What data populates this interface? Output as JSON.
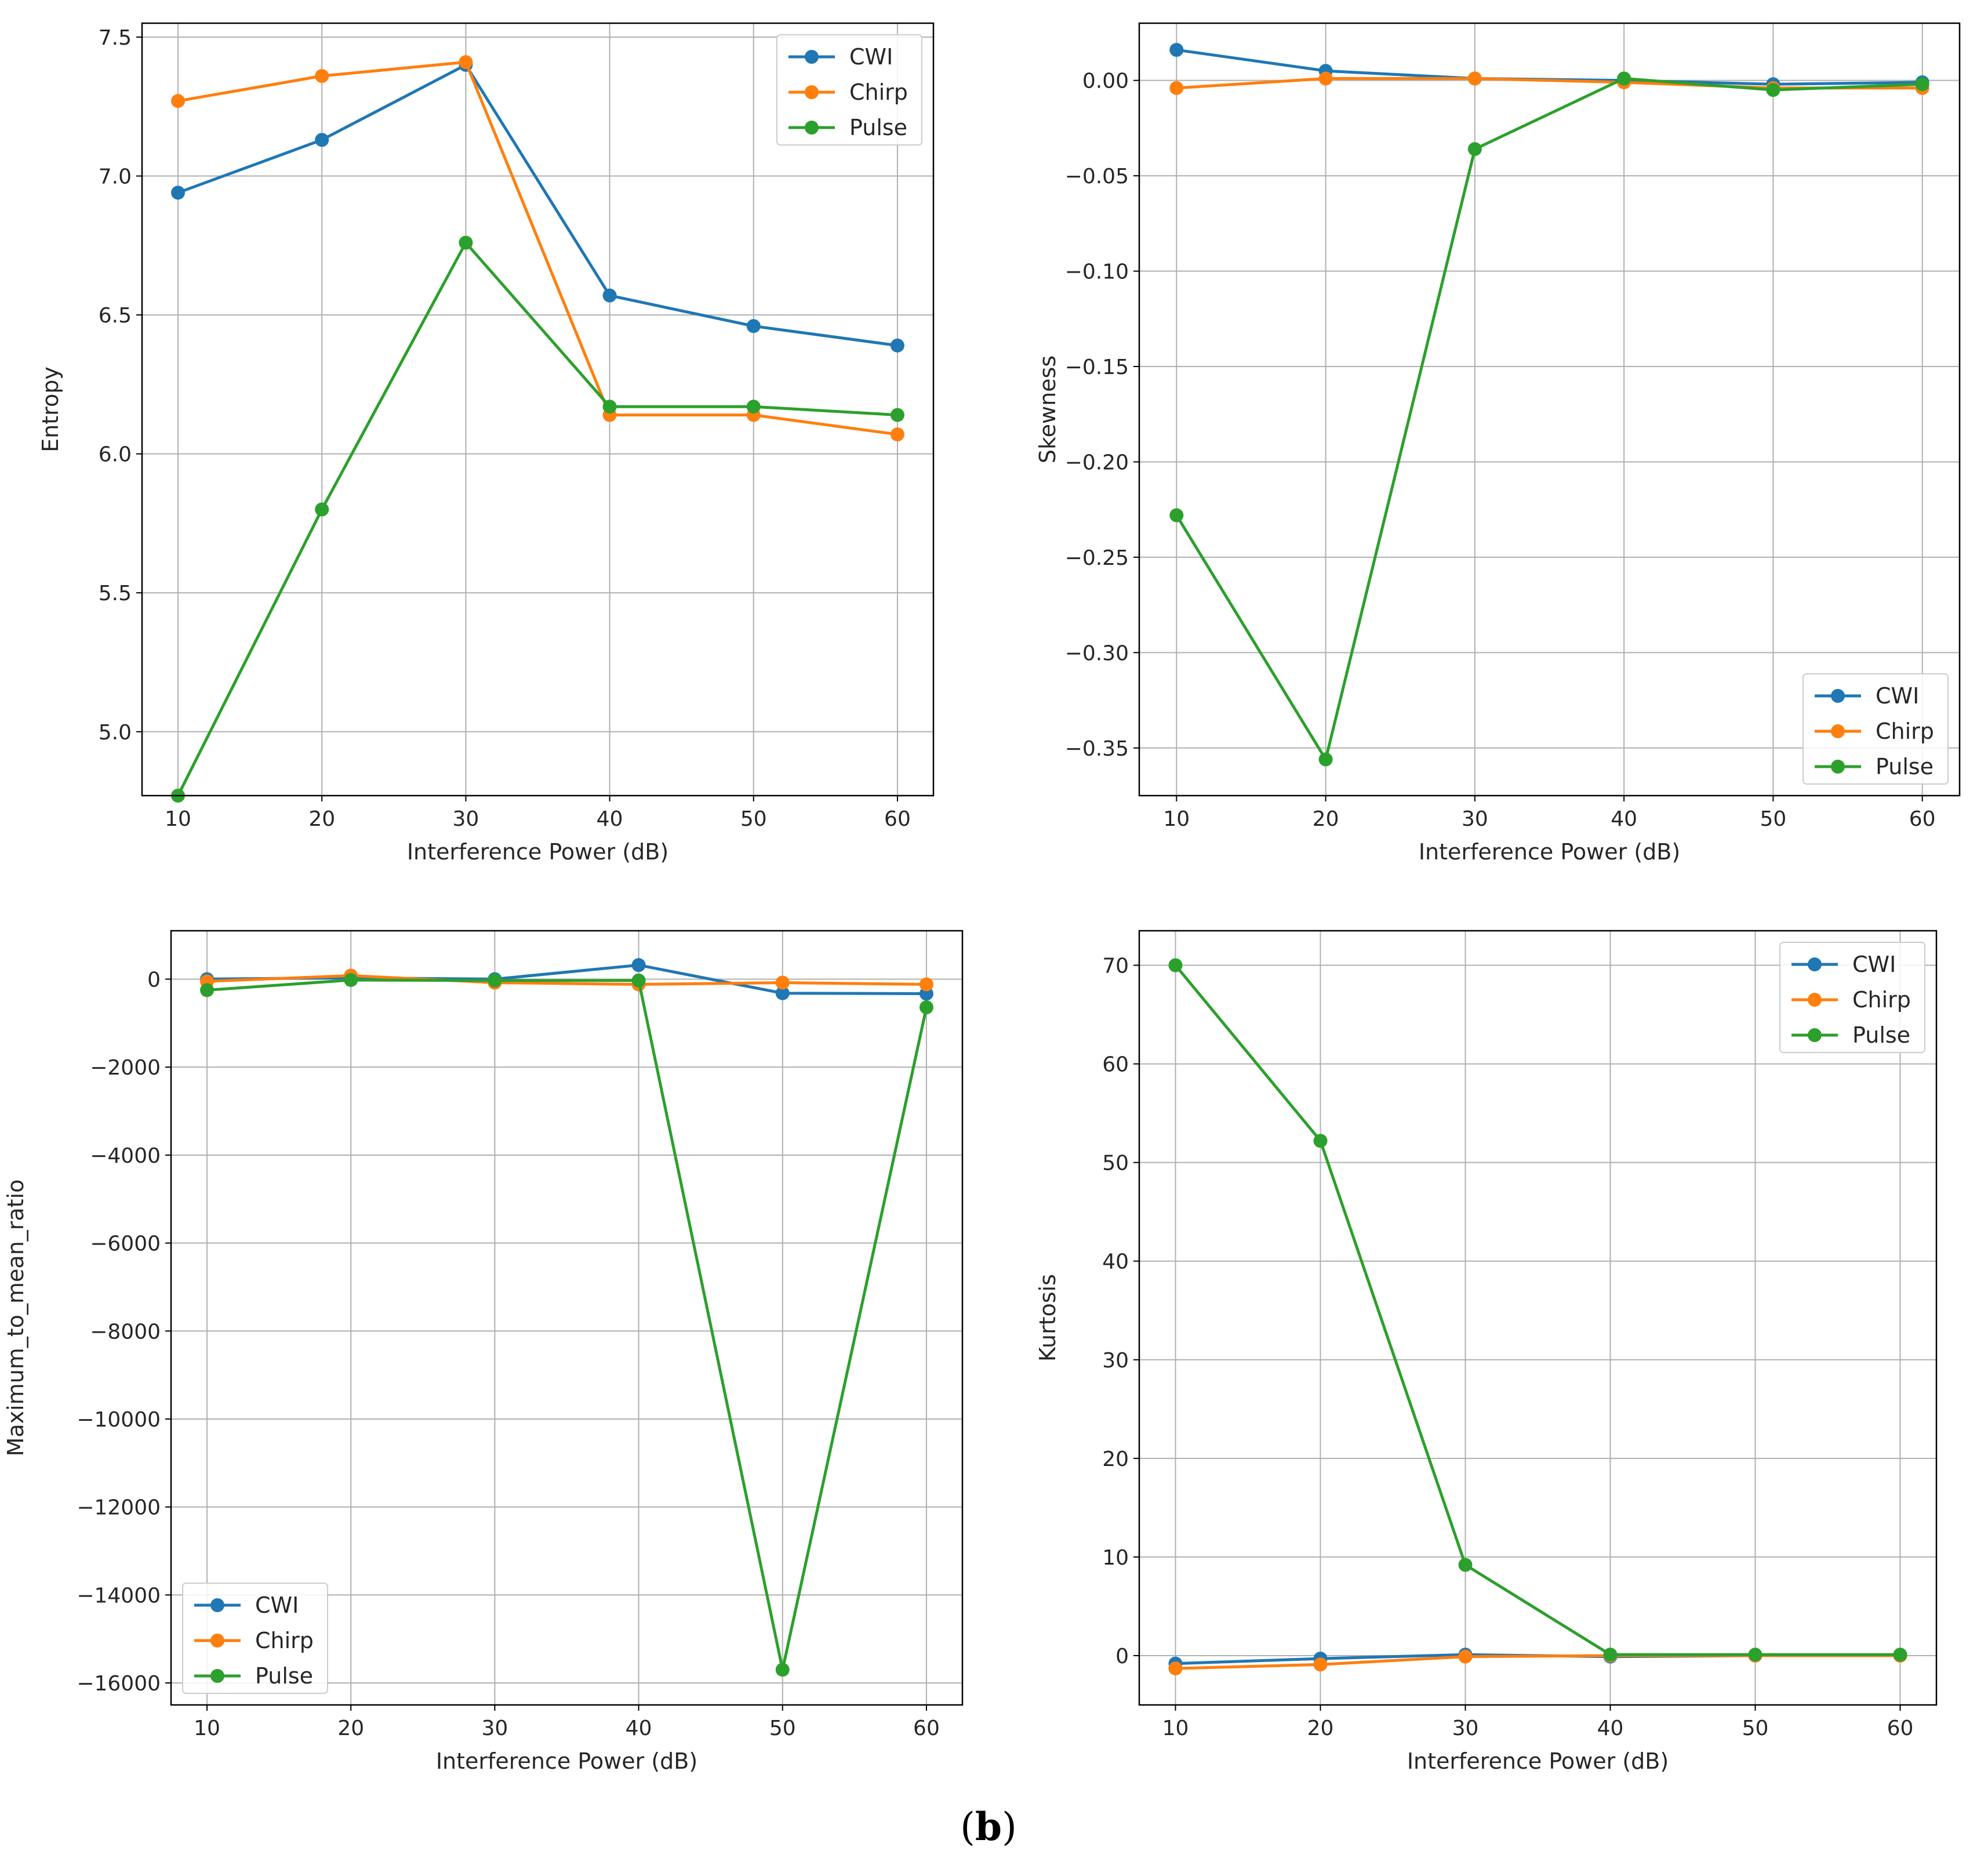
{
  "caption": {
    "open": "(",
    "label": "b",
    "close": ")"
  },
  "colors": {
    "CWI": "#1f77b4",
    "Chirp": "#ff7f0e",
    "Pulse": "#2ca02c",
    "grid": "#b0b0b0"
  },
  "chart_data": [
    {
      "type": "line",
      "xlabel": "Interference Power (dB)",
      "ylabel": "Entropy",
      "x": [
        10,
        20,
        30,
        40,
        50,
        60
      ],
      "xlim": [
        7.5,
        62.5
      ],
      "ylim": [
        4.77,
        7.55
      ],
      "xticks": [
        10,
        20,
        30,
        40,
        50,
        60
      ],
      "yticks": [
        5.0,
        5.5,
        6.0,
        6.5,
        7.0,
        7.5
      ],
      "ytick_labels": [
        "5.0",
        "5.5",
        "6.0",
        "6.5",
        "7.0",
        "7.5"
      ],
      "legend_loc": "upper right",
      "series": [
        {
          "name": "CWI",
          "color": "#1f77b4",
          "values": [
            6.94,
            7.13,
            7.4,
            6.57,
            6.46,
            6.39
          ]
        },
        {
          "name": "Chirp",
          "color": "#ff7f0e",
          "values": [
            7.27,
            7.36,
            7.41,
            6.14,
            6.14,
            6.07
          ]
        },
        {
          "name": "Pulse",
          "color": "#2ca02c",
          "values": [
            4.77,
            5.8,
            6.76,
            6.17,
            6.17,
            6.14
          ]
        }
      ]
    },
    {
      "type": "line",
      "xlabel": "Interference Power (dB)",
      "ylabel": "Skewness",
      "x": [
        10,
        20,
        30,
        40,
        50,
        60
      ],
      "xlim": [
        7.5,
        62.5
      ],
      "ylim": [
        -0.375,
        0.03
      ],
      "xticks": [
        10,
        20,
        30,
        40,
        50,
        60
      ],
      "yticks": [
        -0.35,
        -0.3,
        -0.25,
        -0.2,
        -0.15,
        -0.1,
        -0.05,
        0.0
      ],
      "ytick_labels": [
        "−0.35",
        "−0.30",
        "−0.25",
        "−0.20",
        "−0.15",
        "−0.10",
        "−0.05",
        "0.00"
      ],
      "legend_loc": "lower right",
      "series": [
        {
          "name": "CWI",
          "color": "#1f77b4",
          "values": [
            0.016,
            0.005,
            0.001,
            0.0,
            -0.002,
            -0.001
          ]
        },
        {
          "name": "Chirp",
          "color": "#ff7f0e",
          "values": [
            -0.004,
            0.001,
            0.001,
            -0.001,
            -0.004,
            -0.004
          ]
        },
        {
          "name": "Pulse",
          "color": "#2ca02c",
          "values": [
            -0.228,
            -0.356,
            -0.036,
            0.001,
            -0.005,
            -0.002
          ]
        }
      ]
    },
    {
      "type": "line",
      "xlabel": "Interference Power (dB)",
      "ylabel": "Maximum_to_mean_ratio",
      "x": [
        10,
        20,
        30,
        40,
        50,
        60
      ],
      "xlim": [
        7.5,
        62.5
      ],
      "ylim": [
        -16500,
        1100
      ],
      "xticks": [
        10,
        20,
        30,
        40,
        50,
        60
      ],
      "yticks": [
        -16000,
        -14000,
        -12000,
        -10000,
        -8000,
        -6000,
        -4000,
        -2000,
        0
      ],
      "ytick_labels": [
        "−16000",
        "−14000",
        "−12000",
        "−10000",
        "−8000",
        "−6000",
        "−4000",
        "−2000",
        "0"
      ],
      "legend_loc": "lower left",
      "series": [
        {
          "name": "CWI",
          "color": "#1f77b4",
          "values": [
            0,
            30,
            0,
            320,
            -320,
            -330
          ]
        },
        {
          "name": "Chirp",
          "color": "#ff7f0e",
          "values": [
            -50,
            80,
            -80,
            -120,
            -80,
            -120
          ]
        },
        {
          "name": "Pulse",
          "color": "#2ca02c",
          "values": [
            -250,
            -20,
            -30,
            -30,
            -15700,
            -640
          ]
        }
      ]
    },
    {
      "type": "line",
      "xlabel": "Interference Power (dB)",
      "ylabel": "Kurtosis",
      "x": [
        10,
        20,
        30,
        40,
        50,
        60
      ],
      "xlim": [
        7.5,
        62.5
      ],
      "ylim": [
        -5,
        73.5
      ],
      "xticks": [
        10,
        20,
        30,
        40,
        50,
        60
      ],
      "yticks": [
        0,
        10,
        20,
        30,
        40,
        50,
        60,
        70
      ],
      "ytick_labels": [
        "0",
        "10",
        "20",
        "30",
        "40",
        "50",
        "60",
        "70"
      ],
      "legend_loc": "upper right",
      "series": [
        {
          "name": "CWI",
          "color": "#1f77b4",
          "values": [
            -0.8,
            -0.3,
            0.1,
            -0.1,
            0.0,
            0.0
          ]
        },
        {
          "name": "Chirp",
          "color": "#ff7f0e",
          "values": [
            -1.3,
            -0.9,
            -0.1,
            0.0,
            0.0,
            0.0
          ]
        },
        {
          "name": "Pulse",
          "color": "#2ca02c",
          "values": [
            70.0,
            52.2,
            9.2,
            0.1,
            0.1,
            0.1
          ]
        }
      ]
    }
  ]
}
